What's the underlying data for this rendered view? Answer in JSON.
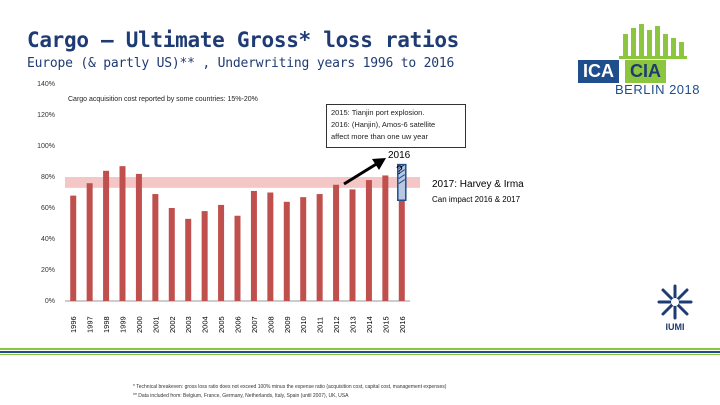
{
  "header": {
    "title": "Cargo – Ultimate Gross* loss ratios",
    "subtitle": "Europe (& partly US)** , Underwriting years 1996 to 2016"
  },
  "logo": {
    "ica": "ICA",
    "cia": "CIA",
    "event": "BERLIN 2018"
  },
  "iumi": {
    "label": "IUMI"
  },
  "annotations": {
    "acquisition": "Cargo acquisition cost reported by some countries: 15%-20%",
    "box_line1": "2015: Tianjin port explosion.",
    "box_line2": "2016: (Hanjin), Amos-6 satellite",
    "box_line3": "affect more than one uw year",
    "year_2016": "2016",
    "question": "?",
    "harvey": "2017: Harvey & Irma",
    "impact": "Can impact 2016 & 2017"
  },
  "footnotes": {
    "f1": "* Technical breakeven: gross loss ratio does not exceed 100% minus the expense ratio (acquisition cost, capital cost, management expenses)",
    "f2": "** Data included from: Belgium, France, Germany, Netherlands, Italy, Spain (until 2007), UK, USA"
  },
  "colors": {
    "bar": "#c0504d",
    "band": "#f4c7c6",
    "title": "#1f3b73",
    "stripe_green": "#8cc63f",
    "stripe_blue": "#1f4e8c"
  },
  "chart_data": {
    "type": "bar",
    "title": "",
    "xlabel": "",
    "ylabel": "",
    "categories": [
      "1996",
      "1997",
      "1998",
      "1999",
      "2000",
      "2001",
      "2002",
      "2003",
      "2004",
      "2005",
      "2006",
      "2007",
      "2008",
      "2009",
      "2010",
      "2011",
      "2012",
      "2013",
      "2014",
      "2015",
      "2016"
    ],
    "values": [
      68,
      76,
      84,
      87,
      82,
      69,
      60,
      53,
      58,
      62,
      55,
      71,
      70,
      64,
      67,
      69,
      75,
      72,
      78,
      81,
      70
    ],
    "ylim": [
      0,
      140
    ],
    "yticks": [
      0,
      20,
      40,
      60,
      80,
      100,
      120,
      140
    ],
    "ytick_labels": [
      "0%",
      "20%",
      "40%",
      "60%",
      "80%",
      "100%",
      "120%",
      "140%"
    ],
    "band_range": [
      73,
      80
    ],
    "highlight_last": true
  }
}
